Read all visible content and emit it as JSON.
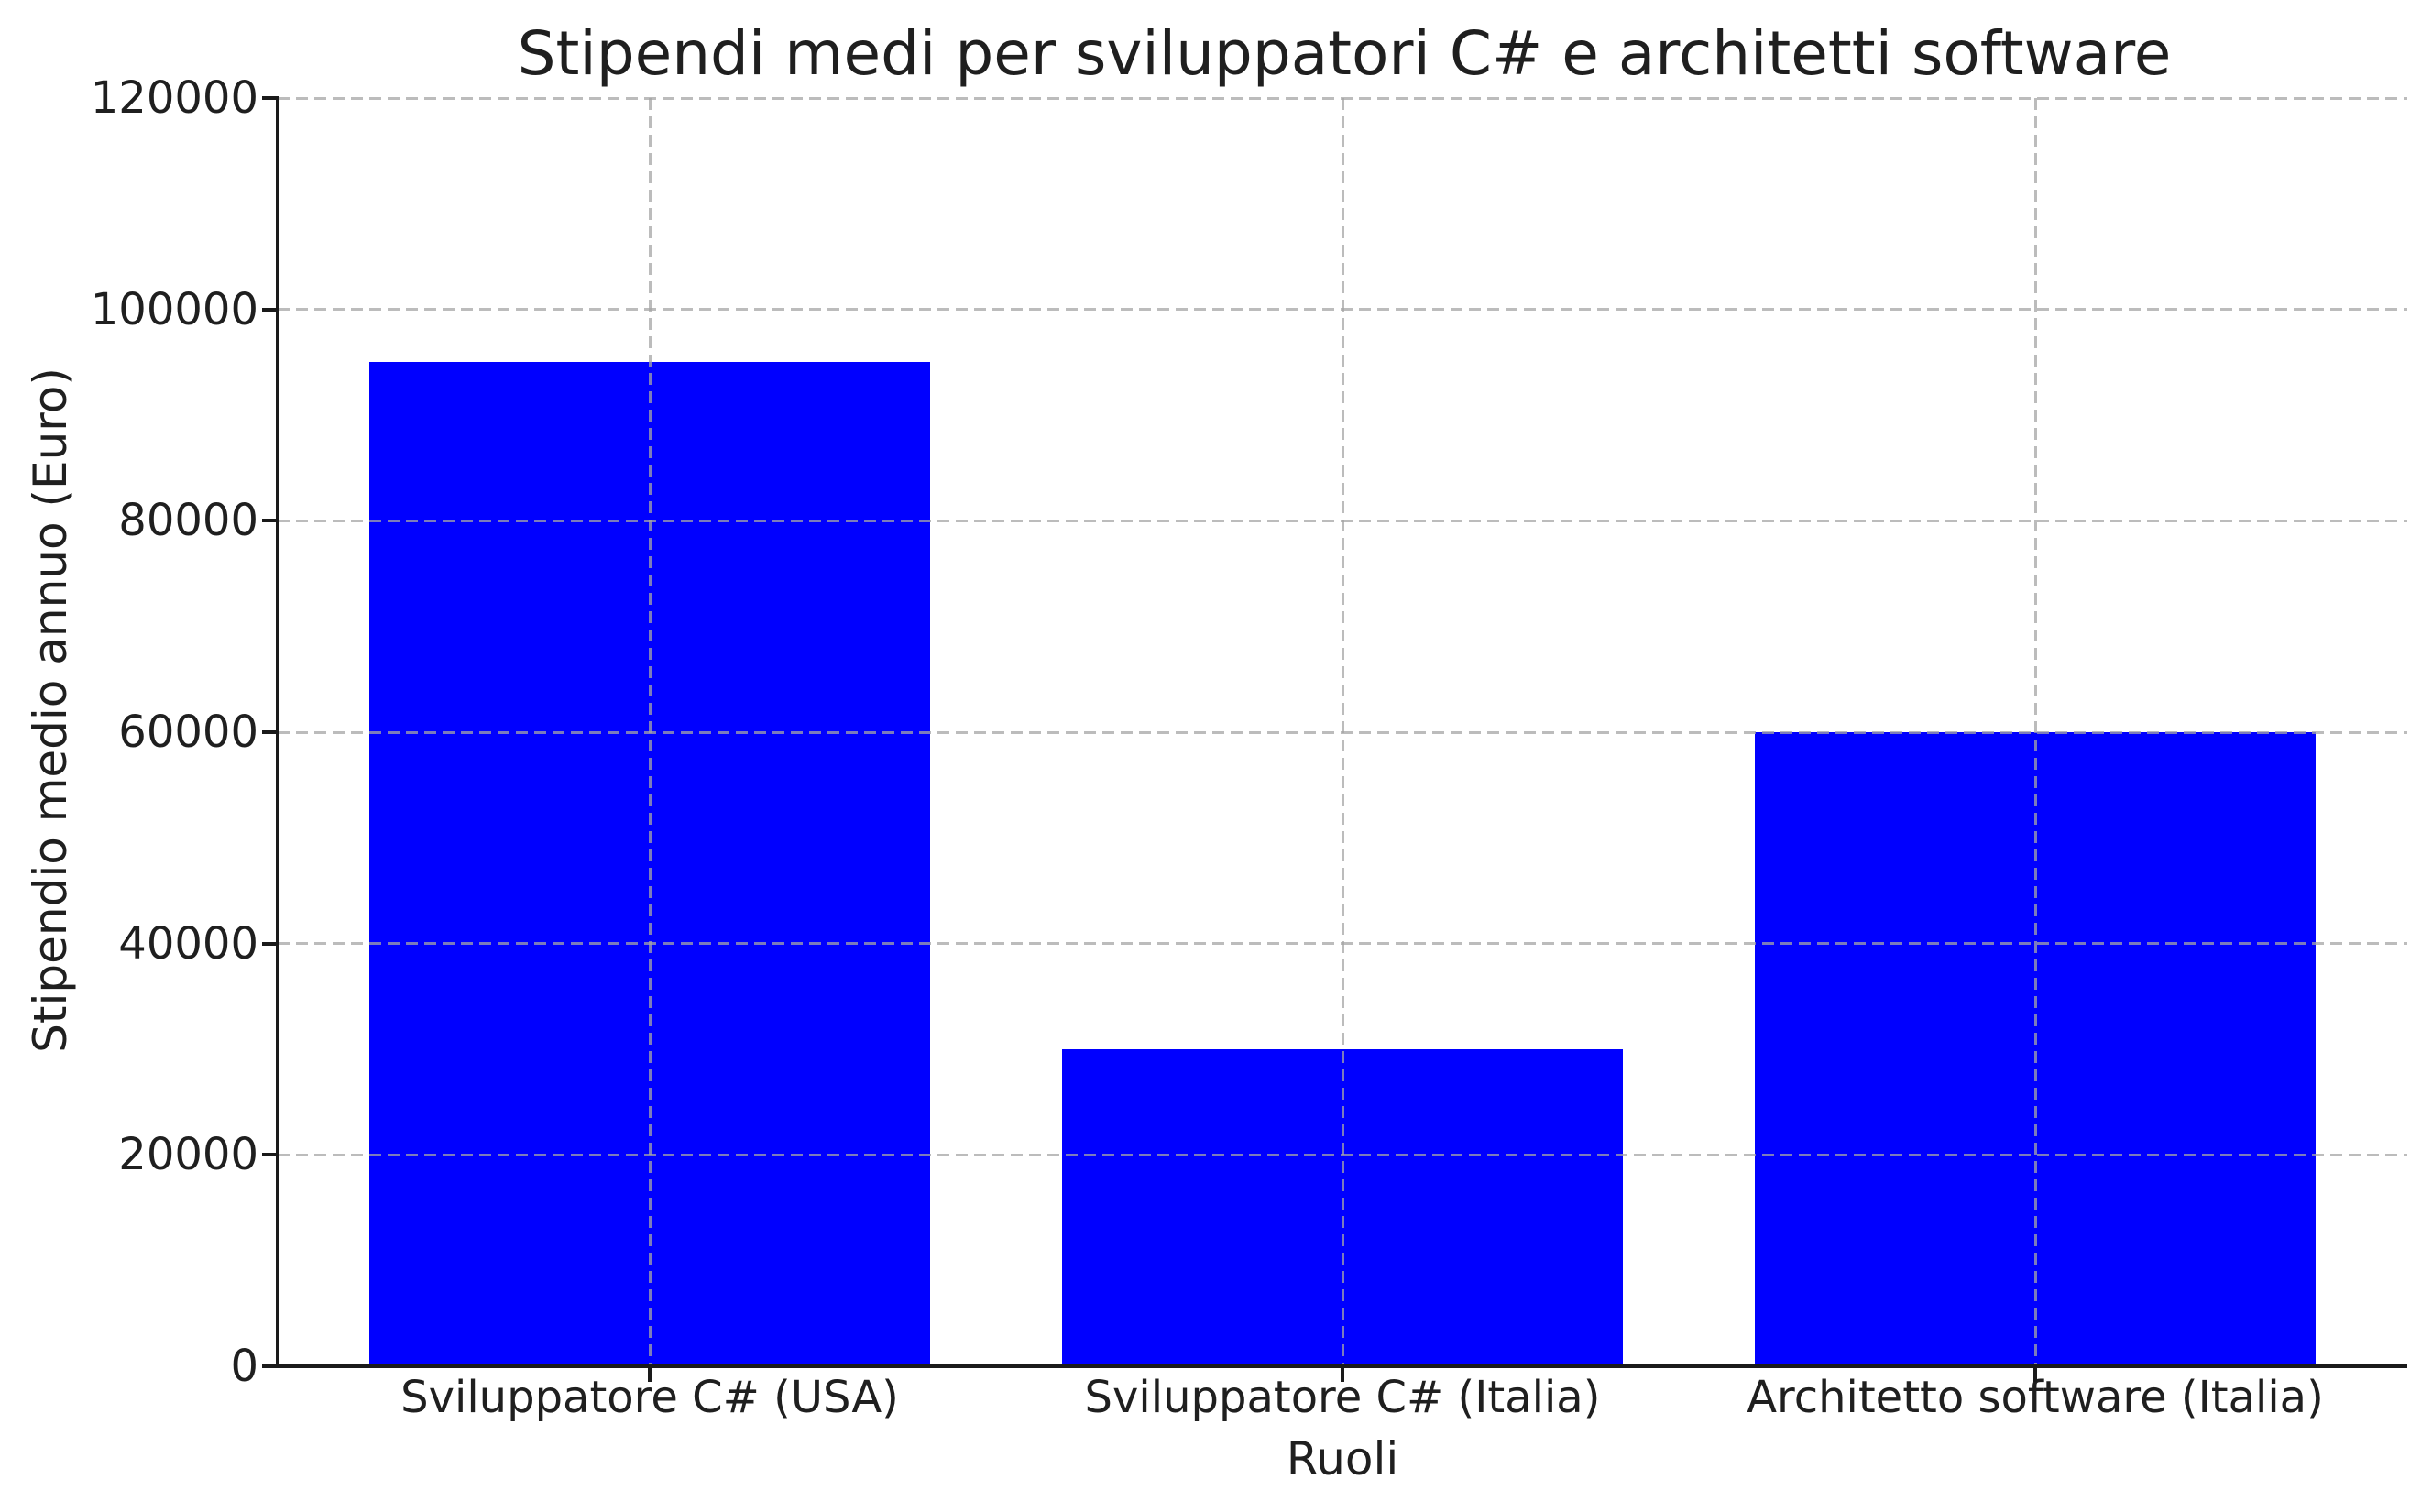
{
  "chart_data": {
    "type": "bar",
    "title": "Stipendi medi per sviluppatori C# e architetti software",
    "xlabel": "Ruoli",
    "ylabel": "Stipendio medio annuo (Euro)",
    "categories": [
      "Sviluppatore C# (USA)",
      "Sviluppatore C# (Italia)",
      "Architetto software (Italia)"
    ],
    "values": [
      95000,
      30000,
      60000
    ],
    "ylim": [
      0,
      120000
    ],
    "yticks": [
      0,
      20000,
      40000,
      60000,
      80000,
      100000,
      120000
    ],
    "grid": "dashed gridlines on both axes, drawn above bars",
    "legend_position": "none",
    "colors": {
      "bar": "#0000ff",
      "grid": "#c6c6c6",
      "text": "#1f1f1f",
      "axis": "#1a1a1a"
    }
  }
}
